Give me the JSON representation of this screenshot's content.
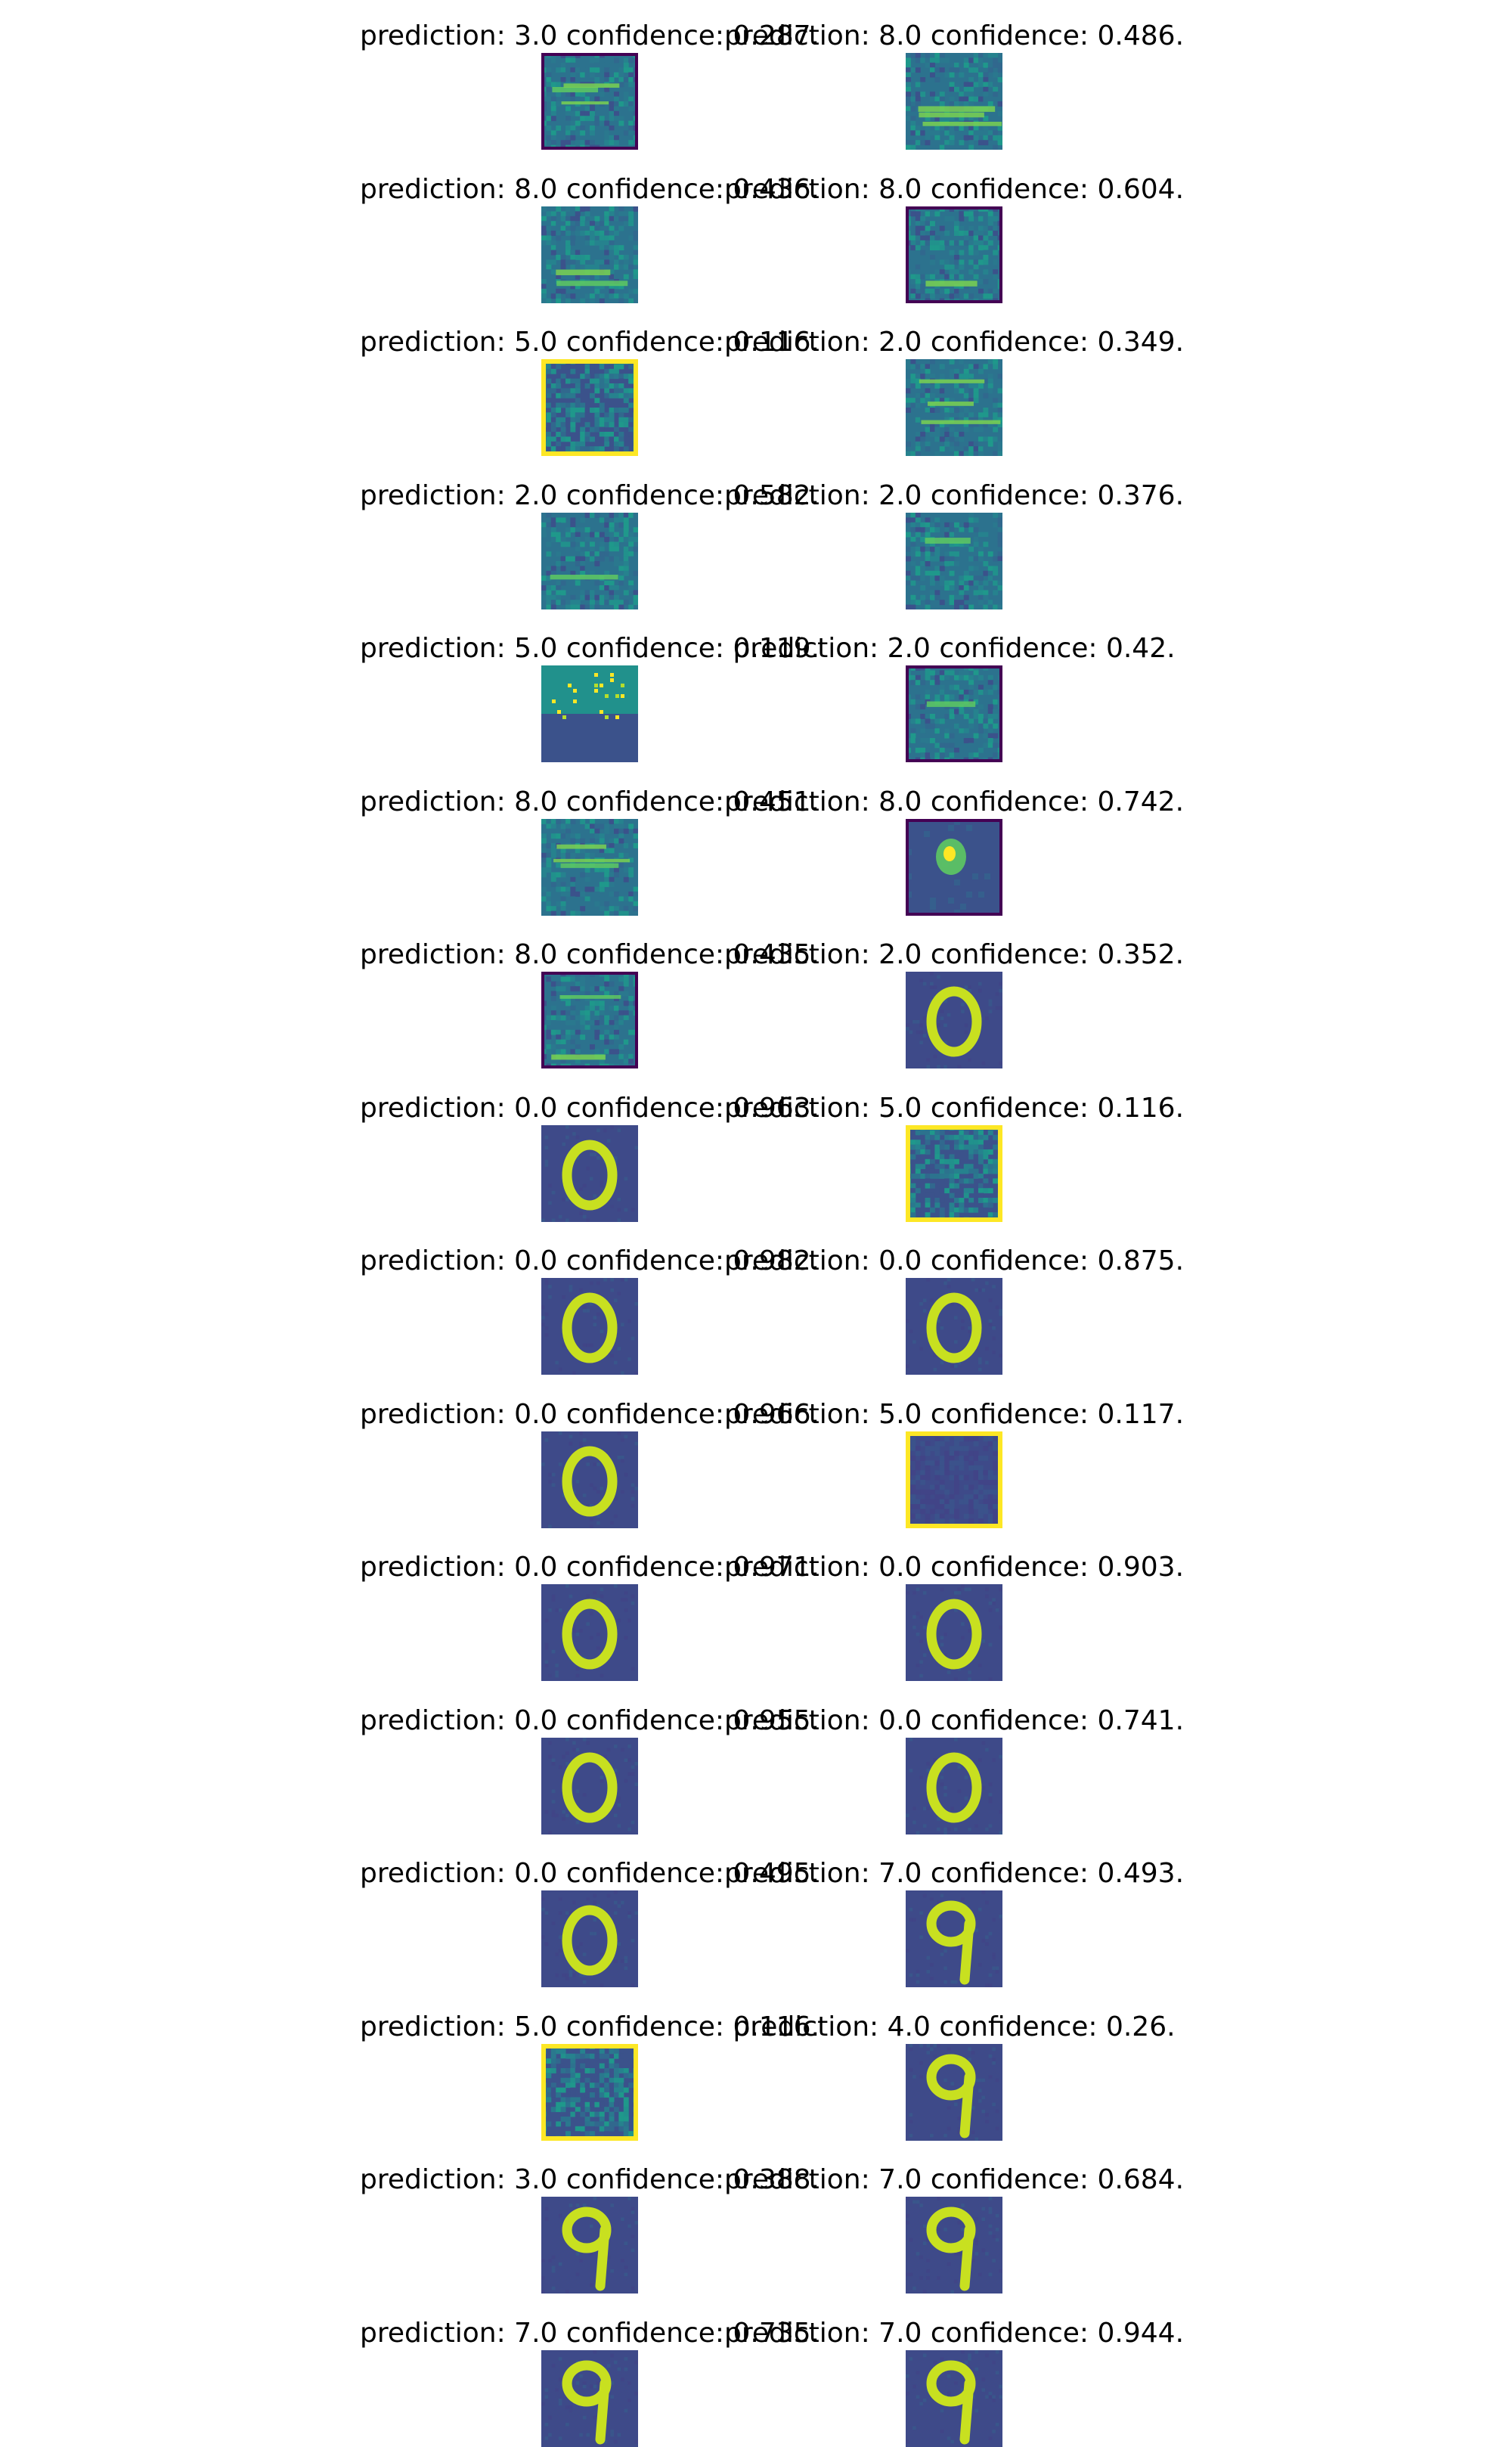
{
  "chart_data": {
    "type": "image-grid",
    "colormap": "viridis",
    "columns": 2,
    "panels": [
      {
        "caption": "prediction: 3.0 confidence: 0.287.",
        "pattern": "noise"
      },
      {
        "caption": "prediction: 8.0 confidence: 0.486.",
        "pattern": "noise"
      },
      {
        "caption": "prediction: 8.0 confidence: 0.436.",
        "pattern": "noise"
      },
      {
        "caption": "prediction: 8.0 confidence: 0.604.",
        "pattern": "noise"
      },
      {
        "caption": "prediction: 5.0 confidence: 0.116.",
        "pattern": "noise-border"
      },
      {
        "caption": "prediction: 2.0 confidence: 0.349.",
        "pattern": "noise"
      },
      {
        "caption": "prediction: 2.0 confidence: 0.582.",
        "pattern": "noise"
      },
      {
        "caption": "prediction: 2.0 confidence: 0.376.",
        "pattern": "noise"
      },
      {
        "caption": "prediction: 5.0 confidence: 0.119.",
        "pattern": "dots"
      },
      {
        "caption": "prediction: 2.0 confidence: 0.42.",
        "pattern": "noise"
      },
      {
        "caption": "prediction: 8.0 confidence: 0.451.",
        "pattern": "noise"
      },
      {
        "caption": "prediction: 8.0 confidence: 0.742.",
        "pattern": "blob"
      },
      {
        "caption": "prediction: 8.0 confidence: 0.435.",
        "pattern": "noise"
      },
      {
        "caption": "prediction: 2.0 confidence: 0.352.",
        "pattern": "zero"
      },
      {
        "caption": "prediction: 0.0 confidence: 0.963.",
        "pattern": "zero"
      },
      {
        "caption": "prediction: 5.0 confidence: 0.116.",
        "pattern": "noise-border"
      },
      {
        "caption": "prediction: 0.0 confidence: 0.982.",
        "pattern": "zero"
      },
      {
        "caption": "prediction: 0.0 confidence: 0.875.",
        "pattern": "zero"
      },
      {
        "caption": "prediction: 0.0 confidence: 0.966.",
        "pattern": "zero"
      },
      {
        "caption": "prediction: 5.0 confidence: 0.117.",
        "pattern": "dark-border"
      },
      {
        "caption": "prediction: 0.0 confidence: 0.971.",
        "pattern": "zero"
      },
      {
        "caption": "prediction: 0.0 confidence: 0.903.",
        "pattern": "zero"
      },
      {
        "caption": "prediction: 0.0 confidence: 0.955.",
        "pattern": "zero"
      },
      {
        "caption": "prediction: 0.0 confidence: 0.741.",
        "pattern": "zero"
      },
      {
        "caption": "prediction: 0.0 confidence: 0.495.",
        "pattern": "zero"
      },
      {
        "caption": "prediction: 7.0 confidence: 0.493.",
        "pattern": "nine"
      },
      {
        "caption": "prediction: 5.0 confidence: 0.116.",
        "pattern": "noise-border"
      },
      {
        "caption": "prediction: 4.0 confidence: 0.26.",
        "pattern": "nine"
      },
      {
        "caption": "prediction: 3.0 confidence: 0.388.",
        "pattern": "nine"
      },
      {
        "caption": "prediction: 7.0 confidence: 0.684.",
        "pattern": "nine"
      },
      {
        "caption": "prediction: 7.0 confidence: 0.735.",
        "pattern": "nine"
      },
      {
        "caption": "prediction: 7.0 confidence: 0.944.",
        "pattern": "nine"
      }
    ]
  }
}
